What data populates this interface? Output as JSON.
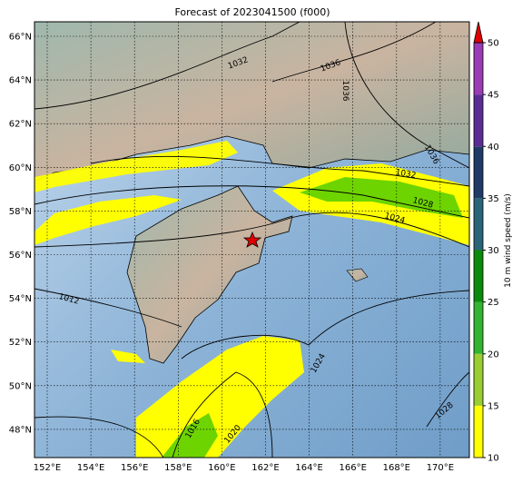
{
  "title": "Forecast of 2023041500 (f000)",
  "map": {
    "lat_labels": [
      "66°N",
      "64°N",
      "62°N",
      "60°N",
      "58°N",
      "56°N",
      "54°N",
      "52°N",
      "50°N",
      "48°N"
    ],
    "lon_labels": [
      "152°E",
      "154°E",
      "156°E",
      "158°E",
      "160°E",
      "162°E",
      "164°E",
      "166°E",
      "168°E",
      "170°E"
    ],
    "contour_labels": [
      "1032",
      "1036",
      "1036",
      "1036",
      "1032",
      "1028",
      "1024",
      "1012",
      "1024",
      "1016",
      "1020",
      "1028"
    ]
  },
  "colorbar": {
    "label": "10 m wind speed (m/s)",
    "ticks": [
      10,
      15,
      20,
      25,
      30,
      35,
      40,
      45,
      50
    ],
    "colors": [
      "#ffff00",
      "#9acd32",
      "#32b432",
      "#0a8a0a",
      "#2a6478",
      "#1f3a66",
      "#5b2c94",
      "#9b3bb5"
    ],
    "extend_color": "#e00000"
  }
}
